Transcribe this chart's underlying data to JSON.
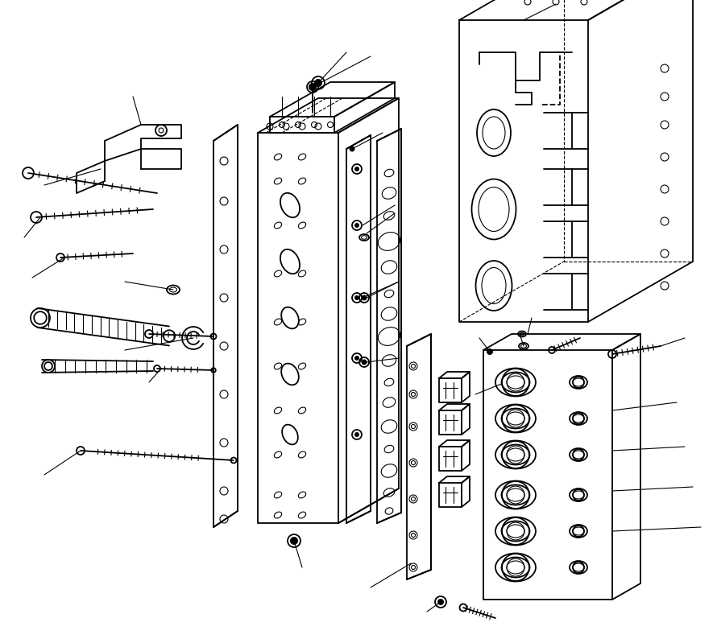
{
  "bg_color": "#ffffff",
  "line_color": "#000000",
  "lw": 1.3,
  "tlw": 0.8,
  "fig_width": 8.9,
  "fig_height": 7.99
}
